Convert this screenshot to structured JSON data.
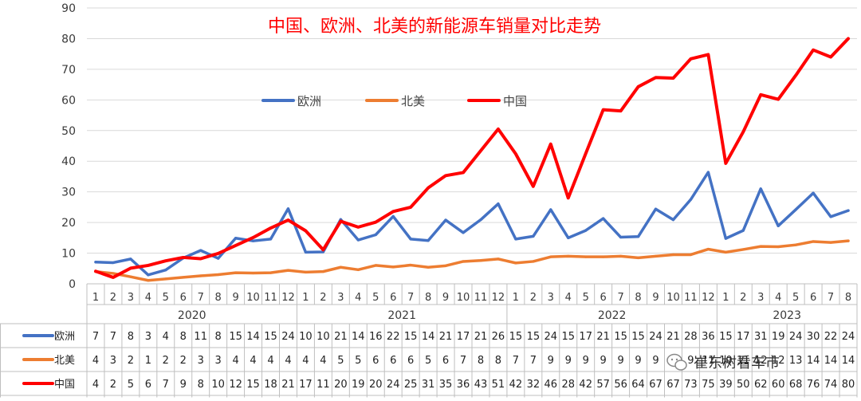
{
  "chart_data": {
    "type": "line",
    "title": "中国、欧洲、北美的新能源车销量对比走势",
    "xlabel": "",
    "ylabel": "",
    "ylim": [
      0,
      90
    ],
    "yticks": [
      0,
      10,
      20,
      30,
      40,
      50,
      60,
      70,
      80,
      90
    ],
    "grid": true,
    "legend_position": "center-left",
    "x_months": [
      1,
      2,
      3,
      4,
      5,
      6,
      7,
      8,
      9,
      10,
      11,
      12,
      1,
      2,
      3,
      4,
      5,
      6,
      7,
      8,
      9,
      10,
      11,
      12,
      1,
      2,
      3,
      4,
      5,
      6,
      7,
      8,
      9,
      10,
      11,
      12,
      1,
      2,
      3,
      4,
      5,
      6,
      7,
      8
    ],
    "years": [
      {
        "label": "2020",
        "count": 12
      },
      {
        "label": "2021",
        "count": 12
      },
      {
        "label": "2022",
        "count": 12
      },
      {
        "label": "2023",
        "count": 8
      }
    ],
    "series": [
      {
        "name": "欧洲",
        "color": "#4472c4",
        "values": [
          7.1,
          6.9,
          8.1,
          2.9,
          4.5,
          8.4,
          10.9,
          8.3,
          14.9,
          14,
          14.6,
          24.5,
          10.3,
          10.4,
          21,
          14.3,
          16,
          22,
          14.6,
          14.1,
          20.8,
          16.7,
          20.9,
          26.1,
          14.6,
          15.5,
          24.2,
          15,
          17.4,
          21.3,
          15.2,
          15.4,
          24.4,
          20.9,
          27.5,
          36.4,
          14.8,
          17.4,
          31,
          18.9,
          24.2,
          29.6,
          21.9,
          23.9
        ]
      },
      {
        "name": "北美",
        "color": "#ed7d31",
        "values": [
          4,
          3.4,
          2.3,
          1.1,
          1.6,
          2.1,
          2.6,
          3,
          3.6,
          3.5,
          3.6,
          4.4,
          3.8,
          4,
          5.4,
          4.6,
          6,
          5.5,
          6.1,
          5.4,
          5.9,
          7.3,
          7.6,
          8.1,
          6.8,
          7.3,
          8.8,
          9,
          8.8,
          8.8,
          9,
          8.5,
          9,
          9.5,
          9.5,
          11.3,
          10.3,
          11.2,
          12.2,
          12.1,
          12.7,
          13.8,
          13.5,
          14
        ]
      },
      {
        "name": "中国",
        "color": "#ff0000",
        "values": [
          4.1,
          2.1,
          5.1,
          6,
          7.5,
          8.6,
          8.2,
          9.9,
          12.5,
          15.1,
          18.2,
          20.8,
          17.3,
          11.1,
          20.4,
          18.5,
          20.1,
          23.6,
          25,
          31.3,
          35.3,
          36.3,
          43.4,
          50.5,
          42.4,
          31.8,
          45.6,
          28,
          42.5,
          56.8,
          56.4,
          64.3,
          67.3,
          67.1,
          73.4,
          74.8,
          39.3,
          49.6,
          61.7,
          60.2,
          68,
          76.3,
          74,
          80
        ]
      }
    ],
    "table_rows": [
      {
        "name": "欧洲",
        "values": [
          "7",
          "7",
          "8",
          "3",
          "4",
          "8",
          "11",
          "8",
          "15",
          "14",
          "15",
          "24",
          "10",
          "10",
          "21",
          "14",
          "16",
          "22",
          "15",
          "14",
          "21",
          "17",
          "21",
          "26",
          "15",
          "15",
          "24",
          "15",
          "17",
          "21",
          "15",
          "15",
          "24",
          "21",
          "28",
          "36",
          "15",
          "17",
          "31",
          "19",
          "24",
          "30",
          "22",
          "24"
        ]
      },
      {
        "name": "北美",
        "values": [
          "4",
          "3",
          "2",
          "1",
          "2",
          "2",
          "3",
          "3",
          "4",
          "4",
          "4",
          "4",
          "4",
          "4",
          "5",
          "5",
          "6",
          "6",
          "6",
          "5",
          "6",
          "7",
          "8",
          "8",
          "7",
          "7",
          "9",
          "9",
          "9",
          "9",
          "9",
          "9",
          "9",
          "9",
          "9",
          "11",
          "10",
          "11",
          "12",
          "12",
          "13",
          "14",
          "14",
          "14"
        ]
      },
      {
        "name": "中国",
        "values": [
          "4",
          "2",
          "5",
          "6",
          "7",
          "9",
          "8",
          "10",
          "12",
          "15",
          "18",
          "21",
          "17",
          "11",
          "20",
          "19",
          "20",
          "24",
          "25",
          "31",
          "35",
          "36",
          "43",
          "51",
          "42",
          "32",
          "46",
          "28",
          "42",
          "57",
          "56",
          "64",
          "67",
          "67",
          "73",
          "75",
          "39",
          "50",
          "62",
          "60",
          "68",
          "76",
          "74",
          "80"
        ]
      }
    ]
  },
  "watermark": "崔东树看车市",
  "watermark_icon": "wechat-icon"
}
